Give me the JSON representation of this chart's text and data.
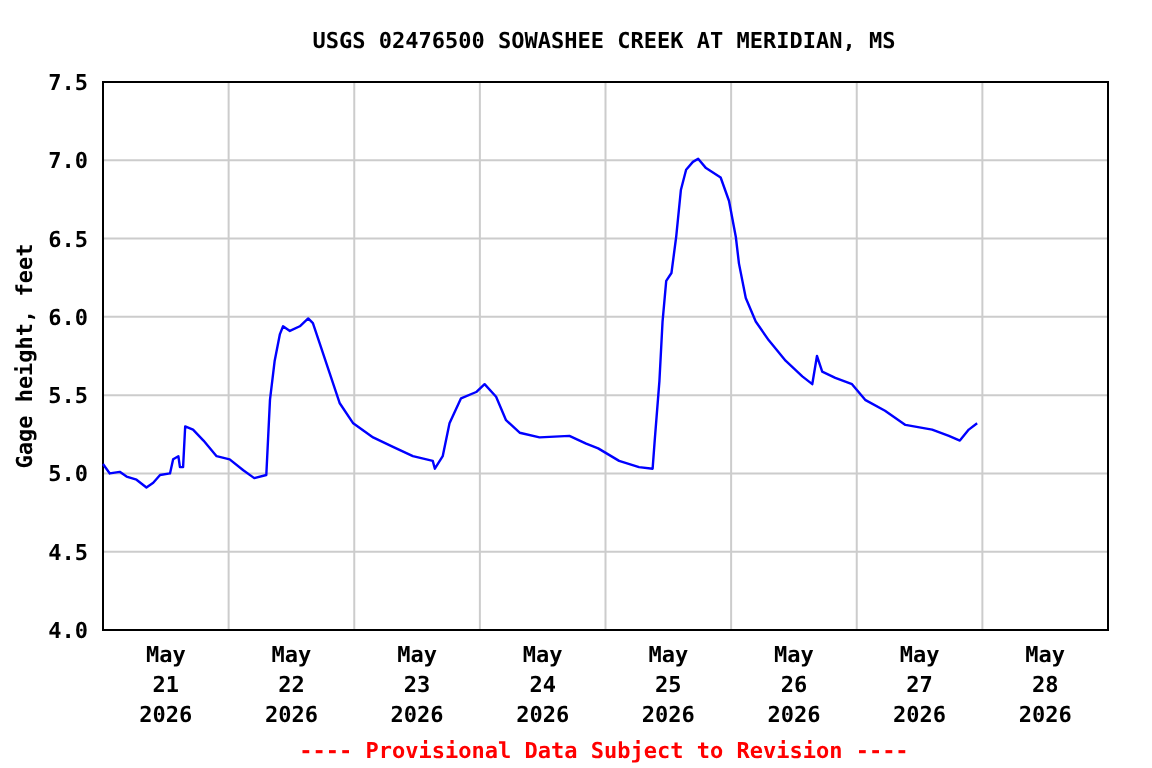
{
  "chart_data": {
    "type": "line",
    "title": "USGS 02476500 SOWASHEE CREEK AT MERIDIAN, MS",
    "ylabel": "Gage height, feet",
    "annotations": [
      "---- Provisional Data Subject to Revision ----"
    ],
    "x": [
      "2026-05-21T00:00",
      "2026-05-21T01:18",
      "2026-05-21T03:12",
      "2026-05-21T04:30",
      "2026-05-21T06:24",
      "2026-05-21T08:18",
      "2026-05-21T09:36",
      "2026-05-21T10:54",
      "2026-05-21T12:48",
      "2026-05-21T13:24",
      "2026-05-21T14:24",
      "2026-05-21T14:42",
      "2026-05-21T15:18",
      "2026-05-21T15:42",
      "2026-05-21T17:12",
      "2026-05-21T19:12",
      "2026-05-21T21:42",
      "2026-05-22T00:12",
      "2026-05-22T02:48",
      "2026-05-22T04:54",
      "2026-05-22T07:12",
      "2026-05-22T07:54",
      "2026-05-22T08:48",
      "2026-05-22T09:48",
      "2026-05-22T10:24",
      "2026-05-22T11:42",
      "2026-05-22T13:36",
      "2026-05-22T15:12",
      "2026-05-22T16:06",
      "2026-05-22T17:24",
      "2026-05-22T19:18",
      "2026-05-22T21:12",
      "2026-05-22T23:48",
      "2026-05-23T03:36",
      "2026-05-23T07:24",
      "2026-05-23T11:12",
      "2026-05-23T15:00",
      "2026-05-23T15:24",
      "2026-05-23T16:54",
      "2026-05-23T18:12",
      "2026-05-23T20:24",
      "2026-05-23T23:18",
      "2026-05-24T00:54",
      "2026-05-24T03:06",
      "2026-05-24T05:00",
      "2026-05-24T07:36",
      "2026-05-24T11:24",
      "2026-05-24T17:06",
      "2026-05-24T20:18",
      "2026-05-24T22:36",
      "2026-05-25T02:36",
      "2026-05-25T06:24",
      "2026-05-25T09:00",
      "2026-05-25T09:24",
      "2026-05-25T10:18",
      "2026-05-25T10:54",
      "2026-05-25T11:36",
      "2026-05-25T12:36",
      "2026-05-25T13:30",
      "2026-05-25T14:24",
      "2026-05-25T15:24",
      "2026-05-25T16:42",
      "2026-05-25T17:42",
      "2026-05-25T19:12",
      "2026-05-25T22:00",
      "2026-05-25T23:36",
      "2026-05-26T00:54",
      "2026-05-26T01:30",
      "2026-05-26T02:48",
      "2026-05-26T04:42",
      "2026-05-26T07:12",
      "2026-05-26T10:24",
      "2026-05-26T13:36",
      "2026-05-26T15:30",
      "2026-05-26T16:24",
      "2026-05-26T17:24",
      "2026-05-26T19:54",
      "2026-05-26T23:06",
      "2026-05-27T01:36",
      "2026-05-27T05:24",
      "2026-05-27T09:18",
      "2026-05-27T14:24",
      "2026-05-27T17:36",
      "2026-05-27T19:42",
      "2026-05-27T21:24",
      "2026-05-27T23:00"
    ],
    "series": [
      {
        "color": "#0000ff",
        "values": [
          5.06,
          5.0,
          5.01,
          4.98,
          4.96,
          4.91,
          4.94,
          4.99,
          5.0,
          5.09,
          5.11,
          5.04,
          5.04,
          5.3,
          5.28,
          5.21,
          5.11,
          5.09,
          5.02,
          4.97,
          4.99,
          5.47,
          5.72,
          5.89,
          5.94,
          5.91,
          5.94,
          5.99,
          5.96,
          5.83,
          5.64,
          5.45,
          5.32,
          5.23,
          5.17,
          5.11,
          5.08,
          5.03,
          5.11,
          5.32,
          5.48,
          5.52,
          5.57,
          5.49,
          5.34,
          5.26,
          5.23,
          5.24,
          5.19,
          5.16,
          5.08,
          5.04,
          5.03,
          5.21,
          5.59,
          5.97,
          6.23,
          6.28,
          6.51,
          6.81,
          6.94,
          6.99,
          7.01,
          6.95,
          6.89,
          6.74,
          6.51,
          6.34,
          6.12,
          5.97,
          5.85,
          5.72,
          5.62,
          5.57,
          5.75,
          5.65,
          5.61,
          5.57,
          5.47,
          5.4,
          5.31,
          5.28,
          5.24,
          5.21,
          5.28,
          5.32
        ]
      }
    ],
    "xlim": [
      "2026-05-21T00:00",
      "2026-05-29T00:00"
    ],
    "xticks": [
      {
        "value": "2026-05-21T12:00",
        "label": "May\n21\n2026"
      },
      {
        "value": "2026-05-22T00:00",
        "label": null
      },
      {
        "value": "2026-05-22T12:00",
        "label": "May\n22\n2026"
      },
      {
        "value": "2026-05-23T00:00",
        "label": null
      },
      {
        "value": "2026-05-23T12:00",
        "label": "May\n23\n2026"
      },
      {
        "value": "2026-05-24T00:00",
        "label": null
      },
      {
        "value": "2026-05-24T12:00",
        "label": "May\n24\n2026"
      },
      {
        "value": "2026-05-25T00:00",
        "label": null
      },
      {
        "value": "2026-05-25T12:00",
        "label": "May\n25\n2026"
      },
      {
        "value": "2026-05-26T00:00",
        "label": null
      },
      {
        "value": "2026-05-26T12:00",
        "label": "May\n26\n2026"
      },
      {
        "value": "2026-05-27T00:00",
        "label": null
      },
      {
        "value": "2026-05-27T12:00",
        "label": "May\n27\n2026"
      },
      {
        "value": "2026-05-28T00:00",
        "label": null
      },
      {
        "value": "2026-05-28T12:00",
        "label": "May\n28\n2026"
      }
    ],
    "ylim": [
      4.0,
      7.5
    ],
    "yticks": [
      {
        "value": 4.0,
        "label": "4.0"
      },
      {
        "value": 4.5,
        "label": "4.5"
      },
      {
        "value": 5.0,
        "label": "5.0"
      },
      {
        "value": 5.5,
        "label": "5.5"
      },
      {
        "value": 6.0,
        "label": "6.0"
      },
      {
        "value": 6.5,
        "label": "6.5"
      },
      {
        "value": 7.0,
        "label": "7.0"
      },
      {
        "value": 7.5,
        "label": "7.5"
      }
    ],
    "grid": true,
    "marker": "none",
    "line_style": "solid"
  }
}
